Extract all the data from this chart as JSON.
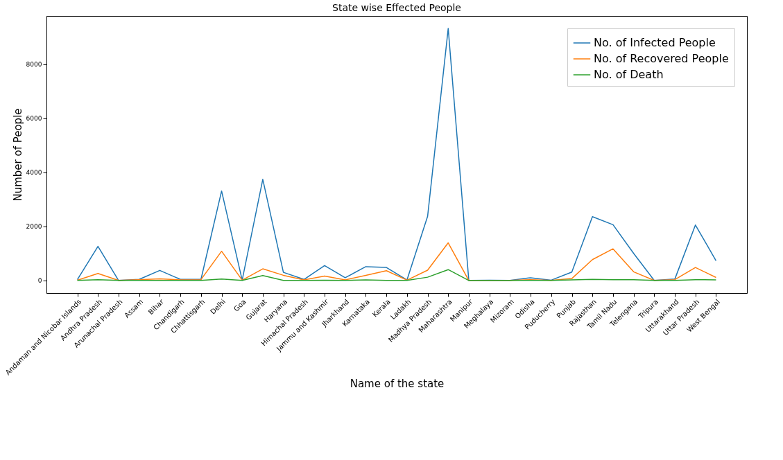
{
  "chart_data": {
    "type": "line",
    "title": "State wise Effected People",
    "xlabel": "Name of the state",
    "ylabel": "Number of People",
    "categories": [
      "Andaman and Nicobar Islands",
      "Andhra Pradesh",
      "Arunachal Pradesh",
      "Assam",
      "Bihar",
      "Chandigarh",
      "Chhattisgarh",
      "Delhi",
      "Goa",
      "Gujarat",
      "Haryana",
      "Himachal Pradesh",
      "Jammu and Kashmir",
      "Jharkhand",
      "Karnataka",
      "Kerala",
      "Ladakh",
      "Madhya Pradesh",
      "Maharashtra",
      "Manipur",
      "Meghalaya",
      "Mizoram",
      "Odisha",
      "Puducherry",
      "Punjab",
      "Rajasthan",
      "Tamil Nadu",
      "Telengana",
      "Tripura",
      "Uttarakhand",
      "Uttar Pradesh",
      "West Bengal"
    ],
    "series": [
      {
        "name": "No. of Infected People",
        "color": "#1f77b4",
        "values": [
          30,
          1260,
          0,
          40,
          370,
          40,
          40,
          3310,
          10,
          3740,
          300,
          40,
          550,
          100,
          510,
          480,
          20,
          2370,
          9320,
          0,
          10,
          0,
          100,
          10,
          310,
          2360,
          2060,
          1000,
          0,
          50,
          2050,
          730
        ]
      },
      {
        "name": "No. of Recovered People",
        "color": "#ff7f0e",
        "values": [
          10,
          260,
          0,
          30,
          60,
          20,
          30,
          1080,
          10,
          430,
          190,
          20,
          160,
          20,
          190,
          360,
          10,
          380,
          1390,
          0,
          0,
          0,
          30,
          0,
          70,
          770,
          1170,
          320,
          0,
          30,
          480,
          110
        ]
      },
      {
        "name": "No. of Death",
        "color": "#2ca02c",
        "values": [
          0,
          30,
          0,
          0,
          0,
          0,
          0,
          50,
          0,
          180,
          0,
          0,
          10,
          0,
          20,
          0,
          0,
          120,
          400,
          0,
          0,
          0,
          0,
          0,
          20,
          40,
          30,
          30,
          0,
          0,
          30,
          20
        ]
      }
    ],
    "ylim": [
      -466,
      9784
    ],
    "yticks": [
      0,
      2000,
      4000,
      6000,
      8000
    ],
    "legend": "top right"
  }
}
